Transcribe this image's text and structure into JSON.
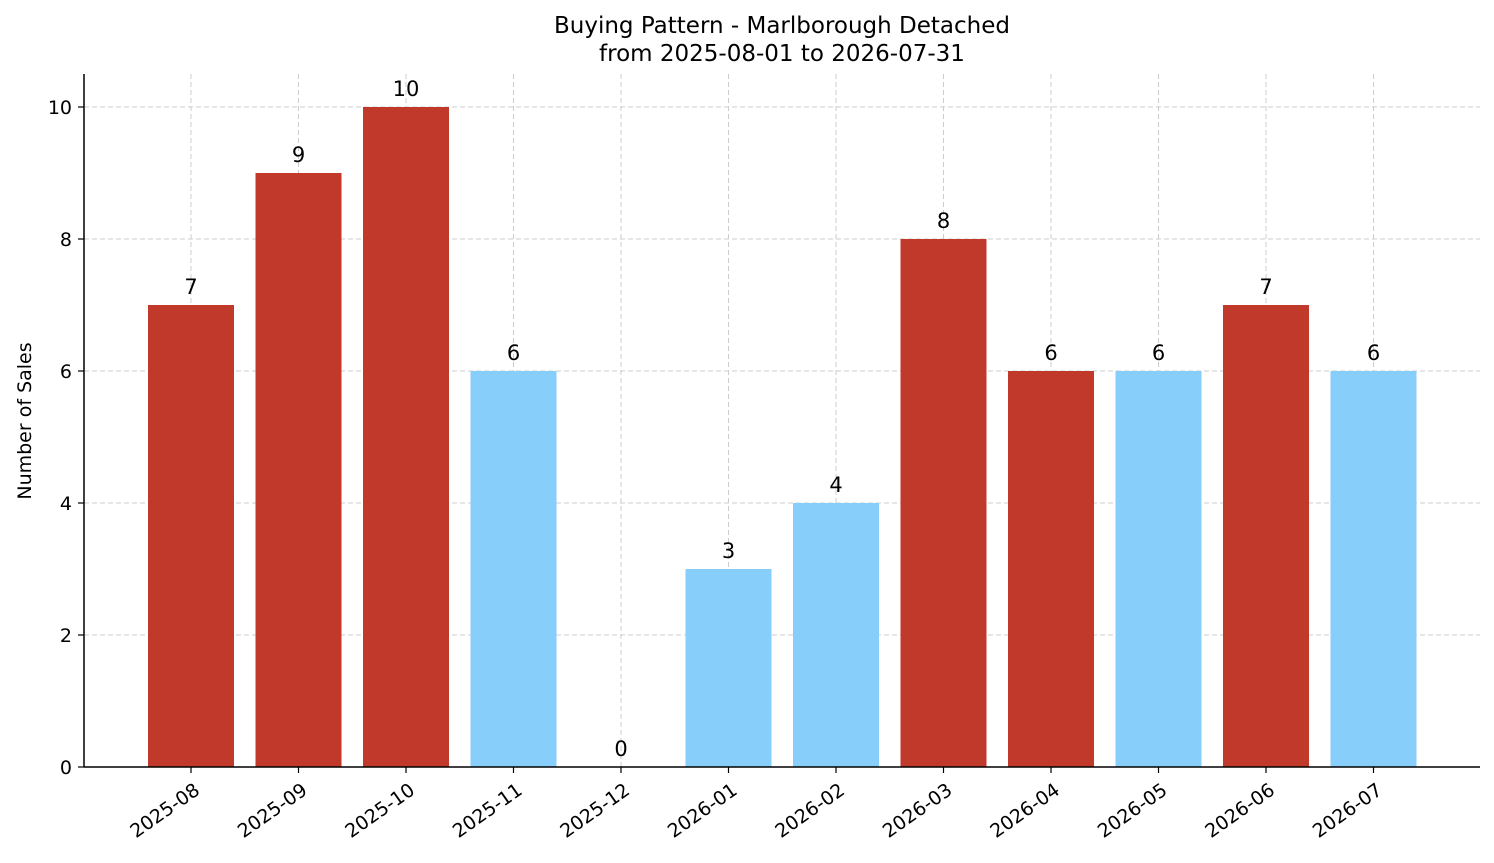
{
  "chart_data": {
    "type": "bar",
    "title": "Buying Pattern - Marlborough Detached",
    "subtitle": "from 2025-08-01 to 2026-07-31",
    "xlabel": "",
    "ylabel": "Number of Sales",
    "ylim": [
      0,
      10.5
    ],
    "yticks": [
      "0",
      "2",
      "4",
      "6",
      "8",
      "10"
    ],
    "grid": true,
    "categories": [
      "2025-08",
      "2025-09",
      "2025-10",
      "2025-11",
      "2025-12",
      "2026-01",
      "2026-02",
      "2026-03",
      "2026-04",
      "2026-05",
      "2026-06",
      "2026-07"
    ],
    "values": [
      7,
      9,
      10,
      6,
      0,
      3,
      4,
      8,
      6,
      6,
      7,
      6
    ],
    "bar_colors": [
      "#c0392b",
      "#c0392b",
      "#c0392b",
      "#87cefa",
      "#87cefa",
      "#87cefa",
      "#87cefa",
      "#c0392b",
      "#c0392b",
      "#87cefa",
      "#c0392b",
      "#87cefa"
    ]
  }
}
